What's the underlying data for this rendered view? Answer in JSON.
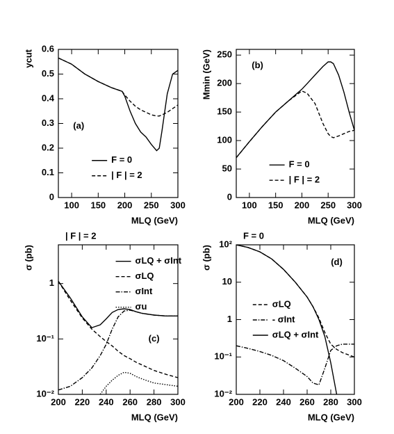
{
  "chart_data": [
    {
      "type": "line",
      "xlabel": "MLQ (GeV)",
      "ylabel": "ycut",
      "annotation": "(a)",
      "x": [
        75,
        100,
        125,
        150,
        175,
        195,
        200,
        210,
        220,
        230,
        240,
        250,
        260,
        265,
        270,
        280,
        290,
        300
      ],
      "xlim": [
        75,
        300
      ],
      "xticks": [
        100,
        150,
        200,
        250,
        300
      ],
      "ylim": [
        0,
        0.6
      ],
      "yticks": [
        0,
        0.1,
        0.2,
        0.3,
        0.4,
        0.5,
        0.6
      ],
      "log": false,
      "series": [
        {
          "name": "F = 0",
          "color": "#000000",
          "dash": "solid",
          "values": [
            0.565,
            0.54,
            0.5,
            0.47,
            0.445,
            0.43,
            0.41,
            0.35,
            0.3,
            0.265,
            0.245,
            0.215,
            0.19,
            0.2,
            0.27,
            0.42,
            0.5,
            0.515
          ]
        },
        {
          "name": "| F | = 2",
          "color": "#000000",
          "dash": "dashed",
          "values": [
            0.565,
            0.54,
            0.5,
            0.47,
            0.445,
            0.43,
            0.415,
            0.39,
            0.37,
            0.355,
            0.345,
            0.335,
            0.33,
            0.33,
            0.335,
            0.345,
            0.36,
            0.375
          ]
        }
      ]
    },
    {
      "type": "line",
      "xlabel": "MLQ (GeV)",
      "ylabel": "Mmin (GeV)",
      "annotation": "(b)",
      "x": [
        75,
        100,
        125,
        150,
        175,
        200,
        210,
        225,
        240,
        250,
        255,
        260,
        270,
        280,
        290,
        300
      ],
      "xlim": [
        75,
        300
      ],
      "xticks": [
        100,
        150,
        200,
        250,
        300
      ],
      "ylim": [
        0,
        260
      ],
      "yticks": [
        0,
        50,
        100,
        150,
        200,
        250
      ],
      "log": false,
      "series": [
        {
          "name": "F = 0",
          "color": "#000000",
          "dash": "solid",
          "values": [
            70,
            98,
            125,
            150,
            170,
            190,
            200,
            215,
            230,
            238,
            238,
            235,
            215,
            185,
            150,
            118
          ]
        },
        {
          "name": "| F | = 2",
          "color": "#000000",
          "dash": "dashed",
          "values": [
            70,
            98,
            125,
            150,
            170,
            187,
            183,
            165,
            130,
            112,
            107,
            105,
            108,
            112,
            116,
            118
          ]
        }
      ]
    },
    {
      "type": "line",
      "title": "| F | = 2",
      "xlabel": "MLQ (GeV)",
      "ylabel": "σ (pb)",
      "annotation": "(c)",
      "x": [
        200,
        210,
        220,
        228,
        235,
        240,
        245,
        250,
        255,
        260,
        265,
        270,
        280,
        290,
        300
      ],
      "xlim": [
        200,
        300
      ],
      "xticks": [
        200,
        220,
        240,
        260,
        280,
        300
      ],
      "ylim": [
        0.01,
        5
      ],
      "yticks": [
        {
          "value": 0.01,
          "label": "10⁻²"
        },
        {
          "value": 0.1,
          "label": "10⁻¹"
        },
        1
      ],
      "log": true,
      "series": [
        {
          "name": "σLQ + σInt",
          "color": "#000000",
          "dash": "solid",
          "values": [
            1.1,
            0.55,
            0.25,
            0.16,
            0.18,
            0.23,
            0.3,
            0.34,
            0.35,
            0.34,
            0.31,
            0.29,
            0.27,
            0.26,
            0.26
          ]
        },
        {
          "name": "σLQ",
          "color": "#000000",
          "dash": "dashed",
          "values": [
            1.1,
            0.5,
            0.24,
            0.15,
            0.11,
            0.09,
            0.075,
            0.06,
            0.05,
            0.044,
            0.038,
            0.034,
            0.027,
            0.023,
            0.02
          ]
        },
        {
          "name": "σInt",
          "color": "#000000",
          "dash": "dashdot",
          "values": [
            0.012,
            0.014,
            0.02,
            0.03,
            0.05,
            0.08,
            0.15,
            0.25,
            0.32,
            0.33,
            0.31,
            0.29,
            0.27,
            0.26,
            0.26
          ]
        },
        {
          "name": "σu",
          "color": "#000000",
          "dash": "dotted",
          "values": [
            null,
            null,
            null,
            null,
            0.01,
            0.014,
            0.018,
            0.022,
            0.025,
            0.024,
            0.021,
            0.019,
            0.016,
            0.015,
            0.014
          ]
        }
      ]
    },
    {
      "type": "line",
      "title": "F = 0",
      "xlabel": "MLQ (GeV)",
      "ylabel": "σ (pb)",
      "annotation": "(d)",
      "x": [
        200,
        210,
        220,
        230,
        240,
        250,
        260,
        265,
        270,
        275,
        280,
        285,
        290,
        300
      ],
      "xlim": [
        200,
        300
      ],
      "xticks": [
        200,
        220,
        240,
        260,
        280,
        300
      ],
      "ylim": [
        0.01,
        100
      ],
      "yticks": [
        {
          "value": 0.01,
          "label": "10⁻²"
        },
        {
          "value": 0.1,
          "label": "10⁻¹"
        },
        1,
        10,
        {
          "value": 100,
          "label": "10²"
        }
      ],
      "log": true,
      "series": [
        {
          "name": "σLQ",
          "color": "#000000",
          "dash": "dashed",
          "values": [
            100,
            85,
            65,
            42,
            22,
            10,
            4,
            2.2,
            1.1,
            0.45,
            0.22,
            0.16,
            0.13,
            0.1
          ]
        },
        {
          "name": "- σInt",
          "color": "#000000",
          "dash": "dashdot",
          "values": [
            0.2,
            0.17,
            0.14,
            0.11,
            0.08,
            0.05,
            0.03,
            0.02,
            0.018,
            0.05,
            0.15,
            0.2,
            0.22,
            0.22
          ]
        },
        {
          "name": "σLQ + σInt",
          "color": "#000000",
          "dash": "solid",
          "values": [
            100,
            85,
            65,
            42,
            22,
            10,
            4,
            2.2,
            1.0,
            0.35,
            0.07,
            0.01,
            null,
            null
          ]
        }
      ]
    }
  ]
}
